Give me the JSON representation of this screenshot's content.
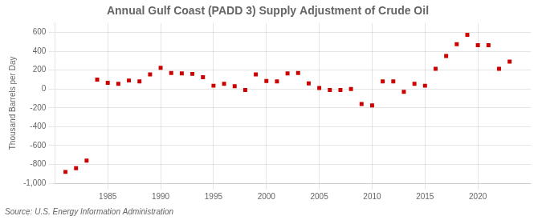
{
  "chart_data": {
    "type": "scatter",
    "title": "Annual Gulf Coast (PADD 3) Supply Adjustment of Crude Oil",
    "ylabel": "Thousand Barrels per Day",
    "source": "Source: U.S. Energy Information Administration",
    "x": [
      1981,
      1982,
      1983,
      1984,
      1985,
      1986,
      1987,
      1988,
      1989,
      1990,
      1991,
      1992,
      1993,
      1994,
      1995,
      1996,
      1997,
      1998,
      1999,
      2000,
      2001,
      2002,
      2003,
      2004,
      2005,
      2006,
      2007,
      2008,
      2009,
      2010,
      2011,
      2012,
      2013,
      2014,
      2015,
      2016,
      2017,
      2018,
      2019,
      2020,
      2021,
      2022,
      2023
    ],
    "values": [
      -880,
      -840,
      -760,
      100,
      65,
      55,
      90,
      80,
      155,
      225,
      170,
      165,
      160,
      125,
      35,
      55,
      30,
      -10,
      155,
      85,
      80,
      165,
      170,
      60,
      10,
      -10,
      -10,
      0,
      -160,
      -175,
      80,
      80,
      -30,
      55,
      35,
      215,
      350,
      475,
      575,
      465,
      465,
      215,
      290
    ],
    "color": "#cc0000",
    "marker": "square",
    "xlim": [
      1980,
      2025
    ],
    "xticks": [
      1985,
      1990,
      1995,
      2000,
      2005,
      2010,
      2015,
      2020
    ],
    "ylim": [
      -1000,
      700
    ],
    "yticks": [
      {
        "value": -1000,
        "label": "-1,000"
      },
      -800,
      -600,
      -400,
      -200,
      0,
      200,
      400,
      600
    ],
    "grid": true
  }
}
